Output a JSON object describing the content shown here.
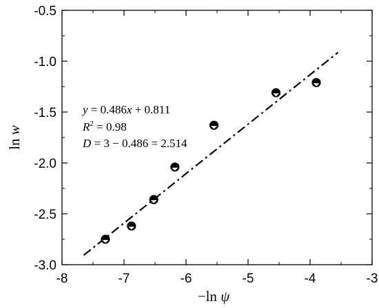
{
  "chart_data": {
    "type": "scatter",
    "xlabel": "−ln ψ",
    "ylabel": "ln w",
    "xlim": [
      -8,
      -3
    ],
    "ylim": [
      -3.0,
      -0.5
    ],
    "x_ticks": [
      -8,
      -7,
      -6,
      -5,
      -4,
      -3
    ],
    "y_ticks": [
      -3.0,
      -2.5,
      -2.0,
      -1.5,
      -1.0,
      -0.5
    ],
    "x_tick_labels": [
      "-8",
      "-7",
      "-6",
      "-5",
      "-4",
      "-3"
    ],
    "y_tick_labels": [
      "-3.0",
      "-2.5",
      "-2.0",
      "-1.5",
      "-1.0",
      "-0.5"
    ],
    "grid": false,
    "points": [
      {
        "x": -7.3,
        "y": -2.75
      },
      {
        "x": -6.88,
        "y": -2.62
      },
      {
        "x": -6.52,
        "y": -2.36
      },
      {
        "x": -6.18,
        "y": -2.04
      },
      {
        "x": -5.55,
        "y": -1.63
      },
      {
        "x": -4.55,
        "y": -1.31
      },
      {
        "x": -3.9,
        "y": -1.21
      }
    ],
    "fit_line": {
      "slope": 0.486,
      "intercept": 0.811,
      "x_range": [
        -7.65,
        -3.55
      ],
      "style": "dash-dot"
    },
    "annotations": [
      "y = 0.486x + 0.811",
      "R² = 0.98",
      "D = 3 − 0.486 = 2.514"
    ]
  }
}
